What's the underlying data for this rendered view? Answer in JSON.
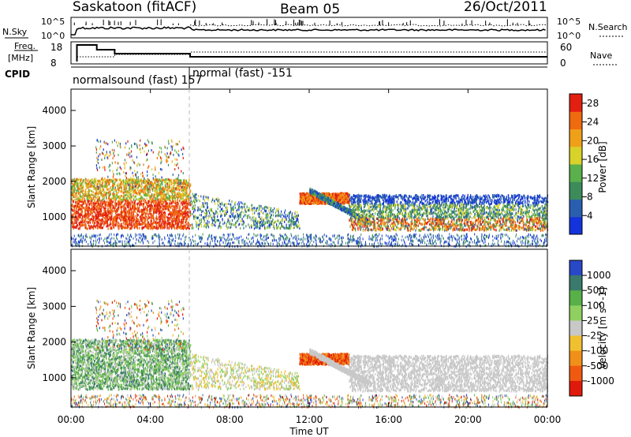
{
  "header": {
    "station": "Saskatoon (fitACF)",
    "beam": "Beam 05",
    "date": "26/Oct/2011"
  },
  "top_panels": {
    "nsky_label": "N.Sky",
    "nsky_ticks": [
      "10^5",
      "10^0"
    ],
    "nsearch_label": "N.Search",
    "nsearch_ticks": [
      "10^5",
      "10^0"
    ],
    "freq_label_1": "Freq.",
    "freq_label_2": "[MHz]",
    "freq_ticks": [
      "18",
      "8"
    ],
    "nave_label": "Nave",
    "nave_ticks": [
      "60",
      "0"
    ],
    "cpid_label": "CPID",
    "cpid_modes": [
      "normalsound (fast) 157",
      "normal (fast) -151"
    ]
  },
  "chart_data": [
    {
      "type": "heatmap",
      "name": "power",
      "ylabel": "Slant Range [km]",
      "yticks": [
        "1000",
        "2000",
        "3000",
        "4000"
      ],
      "ylim": [
        180,
        4600
      ],
      "colorbar_label": "Power [dB]",
      "colorbar_ticks": [
        "4",
        "8",
        "12",
        "16",
        "20",
        "24",
        "28"
      ],
      "colorbar_range": [
        0,
        30
      ],
      "colors": [
        "#1433dc",
        "#2a5fb0",
        "#3b8c5a",
        "#5ab04a",
        "#d8d22a",
        "#f0a018",
        "#f06a10",
        "#e21f10"
      ]
    },
    {
      "type": "heatmap",
      "name": "velocity",
      "ylabel": "Slant Range [km]",
      "yticks": [
        "1000",
        "2000",
        "3000",
        "4000"
      ],
      "ylim": [
        180,
        4600
      ],
      "colorbar_label": "Velocity [m s^-1]",
      "colorbar_ticks": [
        "1000",
        "500",
        "100",
        "25",
        "-25",
        "-100",
        "-500",
        "-1000"
      ],
      "colors": [
        "#2848c8",
        "#3a7a6c",
        "#58b048",
        "#8fd060",
        "#c8c8c8",
        "#f0c030",
        "#f09018",
        "#f05a10",
        "#e01a0a"
      ]
    }
  ],
  "x_axis": {
    "label": "Time UT",
    "ticks": [
      "00:00",
      "04:00",
      "08:00",
      "12:00",
      "16:00",
      "20:00",
      "00:00"
    ],
    "range_hours": [
      0,
      24
    ]
  }
}
